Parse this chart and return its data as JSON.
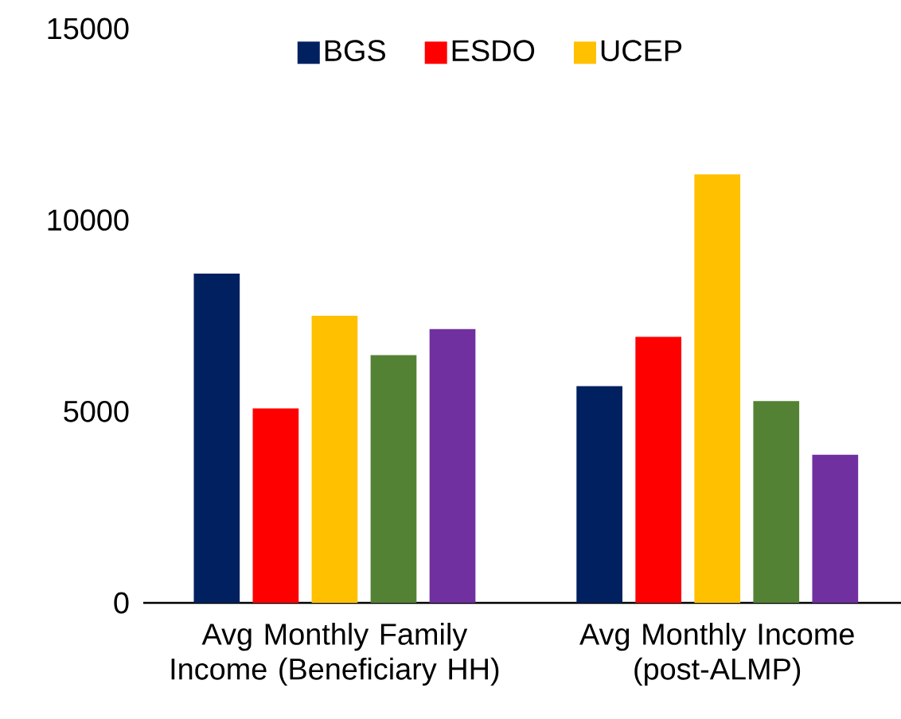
{
  "chart_data": {
    "type": "bar",
    "categories": [
      "Avg Monthly Family Income (Beneficiary HH)",
      "Avg Monthly Income (post-ALMP)"
    ],
    "series": [
      {
        "name": "BGS",
        "color": "#002060",
        "values": [
          8600,
          5660
        ]
      },
      {
        "name": "ESDO",
        "color": "#ff0000",
        "values": [
          5080,
          6950
        ]
      },
      {
        "name": "UCEP",
        "color": "#ffc000",
        "values": [
          7500,
          11190
        ]
      },
      {
        "color": "#548235",
        "values": [
          6470,
          5270
        ]
      },
      {
        "color": "#7030a0",
        "values": [
          7150,
          3870
        ]
      }
    ],
    "ylim": [
      0,
      15000
    ],
    "yticks": [
      0,
      5000,
      10000,
      15000
    ],
    "grid": false,
    "legend": "top"
  }
}
